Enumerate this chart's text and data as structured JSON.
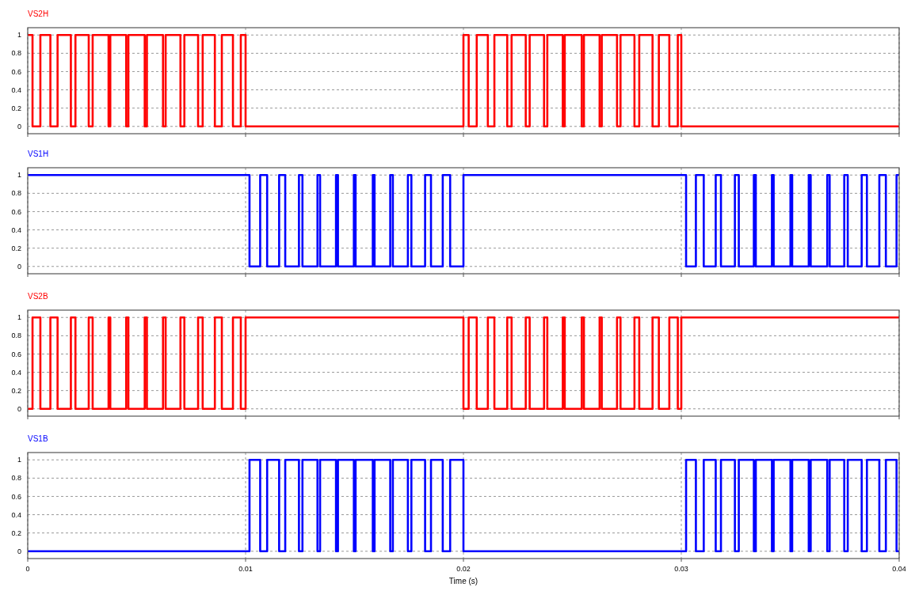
{
  "chart_data": [
    {
      "type": "step",
      "x": [
        0,
        0.00022,
        0.00058,
        0.00104,
        0.00137,
        0.00198,
        0.00219,
        0.0028,
        0.00298,
        0.00371,
        0.00379,
        0.00452,
        0.00462,
        0.00537,
        0.00547,
        0.00621,
        0.00633,
        0.00701,
        0.00719,
        0.00782,
        0.00803,
        0.00859,
        0.00891,
        0.00942,
        0.00978,
        0.01,
        0.02,
        0.02024,
        0.02061,
        0.02112,
        0.02142,
        0.02201,
        0.02221,
        0.02286,
        0.02304,
        0.0237,
        0.02385,
        0.02456,
        0.02465,
        0.02543,
        0.02553,
        0.02625,
        0.02635,
        0.02705,
        0.02721,
        0.02785,
        0.02807,
        0.02868,
        0.02897,
        0.02945,
        0.02984,
        0.03,
        0.04
      ],
      "series": [
        {
          "name": "VS2H",
          "color": "#ff0000",
          "values": [
            1,
            0,
            1,
            0,
            1,
            0,
            1,
            0,
            1,
            0,
            1,
            0,
            1,
            0,
            1,
            0,
            1,
            0,
            1,
            0,
            1,
            0,
            1,
            0,
            1,
            0,
            1,
            0,
            1,
            0,
            1,
            0,
            1,
            0,
            1,
            0,
            1,
            0,
            1,
            0,
            1,
            0,
            1,
            0,
            1,
            0,
            1,
            0,
            1,
            0,
            1,
            0,
            0
          ]
        }
      ],
      "xlim": [
        0,
        0.04
      ],
      "ylim": [
        -0.08,
        1.08
      ],
      "xticks": [
        0,
        0.01,
        0.02,
        0.03,
        0.04
      ],
      "yticks": [
        0,
        0.2,
        0.4,
        0.6,
        0.8,
        1
      ],
      "grid": true,
      "tick_labels": "y"
    },
    {
      "type": "step",
      "x": [
        0,
        0.01018,
        0.01067,
        0.01099,
        0.01154,
        0.01182,
        0.01245,
        0.01261,
        0.0133,
        0.01342,
        0.01415,
        0.01424,
        0.01497,
        0.01505,
        0.01584,
        0.01592,
        0.01664,
        0.01676,
        0.01745,
        0.01761,
        0.01824,
        0.01851,
        0.01905,
        0.01939,
        0.02,
        0.03022,
        0.03067,
        0.03103,
        0.03158,
        0.03182,
        0.03246,
        0.03264,
        0.03333,
        0.03342,
        0.03416,
        0.03424,
        0.03501,
        0.03509,
        0.03585,
        0.03594,
        0.0367,
        0.03681,
        0.03748,
        0.03764,
        0.03828,
        0.03852,
        0.03909,
        0.03939,
        0.03988,
        0.04
      ],
      "series": [
        {
          "name": "VS1H",
          "color": "#0000ff",
          "values": [
            1,
            0,
            1,
            0,
            1,
            0,
            1,
            0,
            1,
            0,
            1,
            0,
            1,
            0,
            1,
            0,
            1,
            0,
            1,
            0,
            1,
            0,
            1,
            0,
            1,
            0,
            1,
            0,
            1,
            0,
            1,
            0,
            1,
            0,
            1,
            0,
            1,
            0,
            1,
            0,
            1,
            0,
            1,
            0,
            1,
            0,
            1,
            0,
            1,
            1
          ]
        }
      ],
      "xlim": [
        0,
        0.04
      ],
      "ylim": [
        -0.08,
        1.08
      ],
      "xticks": [
        0,
        0.01,
        0.02,
        0.03,
        0.04
      ],
      "yticks": [
        0,
        0.2,
        0.4,
        0.6,
        0.8,
        1
      ],
      "grid": true,
      "tick_labels": "y"
    },
    {
      "type": "step",
      "x": [
        0,
        0.00022,
        0.00058,
        0.00104,
        0.00137,
        0.00198,
        0.00219,
        0.0028,
        0.00298,
        0.00371,
        0.00379,
        0.00452,
        0.00462,
        0.00537,
        0.00547,
        0.00621,
        0.00633,
        0.00701,
        0.00719,
        0.00782,
        0.00803,
        0.00859,
        0.00891,
        0.00942,
        0.00978,
        0.01,
        0.02,
        0.02024,
        0.02061,
        0.02112,
        0.02142,
        0.02201,
        0.02221,
        0.02286,
        0.02304,
        0.0237,
        0.02385,
        0.02456,
        0.02465,
        0.02543,
        0.02553,
        0.02625,
        0.02635,
        0.02705,
        0.02721,
        0.02785,
        0.02807,
        0.02868,
        0.02897,
        0.02945,
        0.02984,
        0.03,
        0.04
      ],
      "series": [
        {
          "name": "VS2B",
          "color": "#ff0000",
          "values": [
            0,
            1,
            0,
            1,
            0,
            1,
            0,
            1,
            0,
            1,
            0,
            1,
            0,
            1,
            0,
            1,
            0,
            1,
            0,
            1,
            0,
            1,
            0,
            1,
            0,
            1,
            0,
            1,
            0,
            1,
            0,
            1,
            0,
            1,
            0,
            1,
            0,
            1,
            0,
            1,
            0,
            1,
            0,
            1,
            0,
            1,
            0,
            1,
            0,
            1,
            0,
            1,
            1
          ]
        }
      ],
      "xlim": [
        0,
        0.04
      ],
      "ylim": [
        -0.08,
        1.08
      ],
      "xticks": [
        0,
        0.01,
        0.02,
        0.03,
        0.04
      ],
      "yticks": [
        0,
        0.2,
        0.4,
        0.6,
        0.8,
        1
      ],
      "grid": true,
      "tick_labels": "y"
    },
    {
      "type": "step",
      "x": [
        0,
        0.01018,
        0.01067,
        0.01099,
        0.01154,
        0.01182,
        0.01245,
        0.01261,
        0.0133,
        0.01342,
        0.01415,
        0.01424,
        0.01497,
        0.01505,
        0.01584,
        0.01592,
        0.01664,
        0.01676,
        0.01745,
        0.01761,
        0.01824,
        0.01851,
        0.01905,
        0.01939,
        0.02,
        0.03022,
        0.03067,
        0.03103,
        0.03158,
        0.03182,
        0.03246,
        0.03264,
        0.03333,
        0.03342,
        0.03416,
        0.03424,
        0.03501,
        0.03509,
        0.03585,
        0.03594,
        0.0367,
        0.03681,
        0.03748,
        0.03764,
        0.03828,
        0.03852,
        0.03909,
        0.03939,
        0.03988,
        0.04
      ],
      "series": [
        {
          "name": "VS1B",
          "color": "#0000ff",
          "values": [
            0,
            1,
            0,
            1,
            0,
            1,
            0,
            1,
            0,
            1,
            0,
            1,
            0,
            1,
            0,
            1,
            0,
            1,
            0,
            1,
            0,
            1,
            0,
            1,
            0,
            1,
            0,
            1,
            0,
            1,
            0,
            1,
            0,
            1,
            0,
            1,
            0,
            1,
            0,
            1,
            0,
            1,
            0,
            1,
            0,
            1,
            0,
            1,
            0,
            0
          ]
        }
      ],
      "xlim": [
        0,
        0.04
      ],
      "ylim": [
        -0.08,
        1.08
      ],
      "xticks": [
        0,
        0.01,
        0.02,
        0.03,
        0.04
      ],
      "yticks": [
        0,
        0.2,
        0.4,
        0.6,
        0.8,
        1
      ],
      "grid": true,
      "xlabel": "Time (s)"
    }
  ]
}
